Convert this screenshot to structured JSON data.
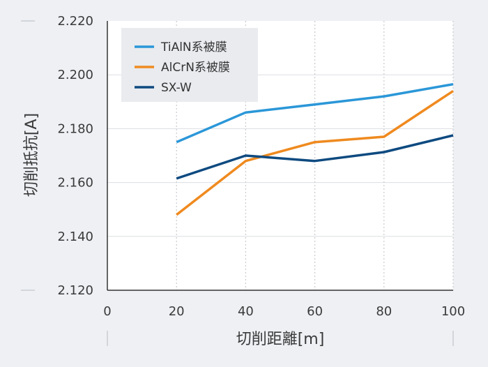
{
  "chart_data": {
    "type": "line",
    "xlabel": "切削距離[m]",
    "ylabel": "切削抵抗[A]",
    "xlim": [
      0,
      100
    ],
    "ylim": [
      2.12,
      2.22
    ],
    "x_ticks": [
      0,
      20,
      40,
      60,
      80,
      100
    ],
    "y_ticks": [
      2.12,
      2.14,
      2.16,
      2.18,
      2.2,
      2.22
    ],
    "x_tick_labels": [
      "0",
      "20",
      "40",
      "60",
      "80",
      "100"
    ],
    "y_tick_labels": [
      "2.120",
      "2.140",
      "2.160",
      "2.180",
      "2.200",
      "2.220"
    ],
    "grid": {
      "x": "dotted",
      "y": "solid"
    },
    "legend_position": "top-left",
    "series": [
      {
        "name": "TiAlN系被膜",
        "color": "#2b97d8",
        "x": [
          20,
          40,
          60,
          80,
          100
        ],
        "y": [
          2.175,
          2.186,
          2.189,
          2.192,
          2.1965
        ]
      },
      {
        "name": "AlCrN系被膜",
        "color": "#ef8a1f",
        "x": [
          20,
          40,
          60,
          80,
          100
        ],
        "y": [
          2.148,
          2.168,
          2.175,
          2.177,
          2.194
        ]
      },
      {
        "name": "SX-W",
        "color": "#0e4a80",
        "x": [
          20,
          40,
          60,
          80,
          100
        ],
        "y": [
          2.1615,
          2.17,
          2.168,
          2.1713,
          2.1775
        ]
      }
    ]
  }
}
